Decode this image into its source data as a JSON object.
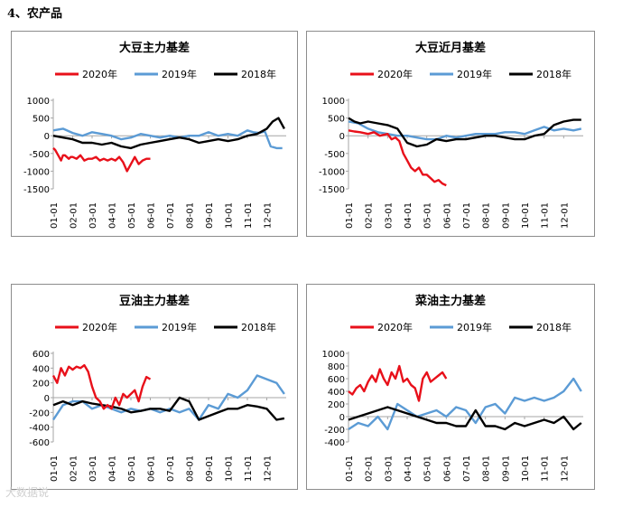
{
  "heading": "4、农产品",
  "watermark": "大数据说",
  "colors": {
    "s2020": "#e8101a",
    "s2019": "#5b9bd5",
    "s2018": "#000000",
    "axis": "#a6a6a6"
  },
  "x_ticks": [
    "01-01",
    "02-01",
    "03-01",
    "04-01",
    "05-01",
    "06-01",
    "07-01",
    "08-01",
    "09-01",
    "10-01",
    "11-01",
    "12-01"
  ],
  "legend": [
    "2020年",
    "2019年",
    "2018年"
  ],
  "chart_data": [
    {
      "type": "line",
      "title": "大豆主力基差",
      "ylim": [
        -1500,
        1000
      ],
      "y_ticks": [
        1000,
        500,
        0,
        -500,
        -1000,
        -1500
      ],
      "legend_position": "top",
      "series": [
        {
          "name": "2020年",
          "x": [
            0,
            0.1,
            0.2,
            0.3,
            0.4,
            0.5,
            0.6,
            0.7,
            0.8,
            0.9,
            1,
            1.2,
            1.4,
            1.6,
            1.8,
            2,
            2.2,
            2.4,
            2.6,
            2.8,
            3,
            3.2,
            3.4,
            3.6,
            3.8,
            4,
            4.2,
            4.4,
            4.6,
            4.8,
            5
          ],
          "values": [
            -350,
            -400,
            -500,
            -600,
            -700,
            -550,
            -550,
            -600,
            -650,
            -600,
            -600,
            -650,
            -550,
            -700,
            -650,
            -650,
            -600,
            -700,
            -650,
            -700,
            -650,
            -700,
            -600,
            -750,
            -1000,
            -800,
            -600,
            -800,
            -700,
            -650,
            -650
          ]
        },
        {
          "name": "2019年",
          "x": [
            0,
            0.5,
            1,
            1.5,
            2,
            2.5,
            3,
            3.5,
            4,
            4.5,
            5,
            5.5,
            6,
            6.5,
            7,
            7.5,
            8,
            8.5,
            9,
            9.5,
            10,
            10.3,
            10.6,
            10.9,
            11.2,
            11.5,
            11.8
          ],
          "values": [
            150,
            200,
            80,
            0,
            100,
            50,
            0,
            -100,
            -50,
            50,
            0,
            -50,
            0,
            -50,
            0,
            0,
            100,
            0,
            50,
            0,
            150,
            100,
            80,
            120,
            -300,
            -350,
            -350
          ]
        },
        {
          "name": "2018年",
          "x": [
            0,
            0.5,
            1,
            1.5,
            2,
            2.5,
            3,
            3.5,
            4,
            4.5,
            5,
            5.5,
            6,
            6.5,
            7,
            7.5,
            8,
            8.5,
            9,
            9.5,
            10,
            10.5,
            11,
            11.3,
            11.6,
            11.9
          ],
          "values": [
            0,
            -50,
            -100,
            -200,
            -200,
            -250,
            -200,
            -300,
            -350,
            -250,
            -200,
            -150,
            -100,
            -50,
            -100,
            -200,
            -150,
            -100,
            -150,
            -100,
            0,
            50,
            200,
            400,
            500,
            200
          ]
        }
      ]
    },
    {
      "type": "line",
      "title": "大豆近月基差",
      "ylim": [
        -1500,
        1000
      ],
      "y_ticks": [
        1000,
        500,
        0,
        -500,
        -1000,
        -1500
      ],
      "legend_position": "top",
      "series": [
        {
          "name": "2020年",
          "x": [
            0,
            0.3,
            0.6,
            1,
            1.3,
            1.6,
            2,
            2.2,
            2.4,
            2.6,
            2.8,
            3,
            3.2,
            3.4,
            3.6,
            3.8,
            4,
            4.2,
            4.4,
            4.6,
            4.8,
            5
          ],
          "values": [
            150,
            120,
            100,
            50,
            100,
            0,
            50,
            -100,
            -50,
            -150,
            -500,
            -700,
            -900,
            -1000,
            -900,
            -1100,
            -1100,
            -1200,
            -1300,
            -1250,
            -1350,
            -1400
          ]
        },
        {
          "name": "2019年",
          "x": [
            0,
            0.5,
            1,
            1.5,
            2,
            2.5,
            3,
            3.5,
            4,
            4.5,
            5,
            5.5,
            6,
            6.5,
            7,
            7.5,
            8,
            8.5,
            9,
            9.5,
            10,
            10.5,
            11,
            11.5,
            11.9
          ],
          "values": [
            400,
            350,
            200,
            100,
            50,
            0,
            0,
            -50,
            -100,
            -100,
            0,
            -50,
            0,
            50,
            50,
            50,
            100,
            100,
            50,
            150,
            250,
            150,
            200,
            150,
            200
          ]
        },
        {
          "name": "2018年",
          "x": [
            0,
            0.3,
            0.6,
            1,
            1.5,
            2,
            2.5,
            3,
            3.5,
            4,
            4.5,
            5,
            5.5,
            6,
            6.5,
            7,
            7.5,
            8,
            8.5,
            9,
            9.5,
            10,
            10.5,
            11,
            11.5,
            11.9
          ],
          "values": [
            500,
            400,
            350,
            400,
            350,
            300,
            200,
            -200,
            -300,
            -250,
            -100,
            -150,
            -100,
            -100,
            -50,
            0,
            0,
            -50,
            -100,
            -100,
            0,
            50,
            300,
            400,
            450,
            450
          ]
        }
      ]
    },
    {
      "type": "line",
      "title": "豆油主力基差",
      "ylim": [
        -600,
        600
      ],
      "y_ticks": [
        600,
        400,
        200,
        0,
        -200,
        -400,
        -600
      ],
      "legend_position": "top",
      "series": [
        {
          "name": "2020年",
          "x": [
            0,
            0.2,
            0.4,
            0.6,
            0.8,
            1,
            1.2,
            1.4,
            1.6,
            1.8,
            2,
            2.2,
            2.4,
            2.6,
            2.8,
            3,
            3.2,
            3.4,
            3.6,
            3.8,
            4,
            4.2,
            4.4,
            4.6,
            4.8,
            5
          ],
          "values": [
            300,
            200,
            400,
            300,
            420,
            380,
            420,
            400,
            440,
            350,
            150,
            0,
            -50,
            -150,
            -100,
            -150,
            0,
            -100,
            50,
            0,
            50,
            100,
            -50,
            150,
            280,
            250
          ]
        },
        {
          "name": "2019年",
          "x": [
            0,
            0.5,
            1,
            1.5,
            2,
            2.5,
            3,
            3.5,
            4,
            4.5,
            5,
            5.5,
            6,
            6.5,
            7,
            7.5,
            8,
            8.5,
            9,
            9.5,
            10,
            10.5,
            11,
            11.5,
            11.9
          ],
          "values": [
            -300,
            -100,
            -50,
            -50,
            -150,
            -100,
            -150,
            -200,
            -150,
            -180,
            -150,
            -200,
            -150,
            -200,
            -150,
            -300,
            -100,
            -150,
            50,
            0,
            100,
            300,
            250,
            200,
            50
          ]
        },
        {
          "name": "2018年",
          "x": [
            0,
            0.5,
            1,
            1.5,
            2,
            2.5,
            3,
            3.5,
            4,
            4.5,
            5,
            5.5,
            6,
            6.5,
            7,
            7.5,
            8,
            8.5,
            9,
            9.5,
            10,
            10.5,
            11,
            11.5,
            11.9
          ],
          "values": [
            -100,
            -50,
            -100,
            -50,
            -80,
            -100,
            -120,
            -150,
            -200,
            -180,
            -150,
            -150,
            -180,
            0,
            -50,
            -300,
            -250,
            -200,
            -150,
            -150,
            -100,
            -120,
            -150,
            -300,
            -280
          ]
        }
      ]
    },
    {
      "type": "line",
      "title": "菜油主力基差",
      "ylim": [
        -400,
        1000
      ],
      "y_ticks": [
        1000,
        800,
        600,
        400,
        200,
        0,
        -200,
        -400
      ],
      "legend_position": "top",
      "series": [
        {
          "name": "2020年",
          "x": [
            0,
            0.2,
            0.4,
            0.6,
            0.8,
            1,
            1.2,
            1.4,
            1.6,
            1.8,
            2,
            2.2,
            2.4,
            2.6,
            2.8,
            3,
            3.2,
            3.4,
            3.6,
            3.8,
            4,
            4.2,
            4.4,
            4.6,
            4.8,
            5
          ],
          "values": [
            400,
            350,
            450,
            500,
            400,
            550,
            650,
            550,
            750,
            600,
            500,
            700,
            600,
            800,
            550,
            600,
            500,
            450,
            250,
            600,
            700,
            550,
            600,
            650,
            700,
            600
          ]
        },
        {
          "name": "2019年",
          "x": [
            0,
            0.5,
            1,
            1.5,
            2,
            2.5,
            3,
            3.5,
            4,
            4.5,
            5,
            5.5,
            6,
            6.5,
            7,
            7.5,
            8,
            8.5,
            9,
            9.5,
            10,
            10.5,
            11,
            11.5,
            11.9
          ],
          "values": [
            -200,
            -100,
            -150,
            0,
            -200,
            200,
            100,
            0,
            50,
            100,
            0,
            150,
            100,
            -100,
            150,
            200,
            50,
            300,
            250,
            300,
            250,
            300,
            400,
            600,
            400
          ]
        },
        {
          "name": "2018年",
          "x": [
            0,
            0.5,
            1,
            1.5,
            2,
            2.5,
            3,
            3.5,
            4,
            4.5,
            5,
            5.5,
            6,
            6.5,
            7,
            7.5,
            8,
            8.5,
            9,
            9.5,
            10,
            10.5,
            11,
            11.5,
            11.9
          ],
          "values": [
            -50,
            0,
            50,
            100,
            150,
            100,
            50,
            0,
            -50,
            -100,
            -100,
            -150,
            -150,
            100,
            -150,
            -150,
            -200,
            -100,
            -150,
            -100,
            -50,
            -100,
            0,
            -200,
            -100
          ]
        }
      ]
    }
  ]
}
